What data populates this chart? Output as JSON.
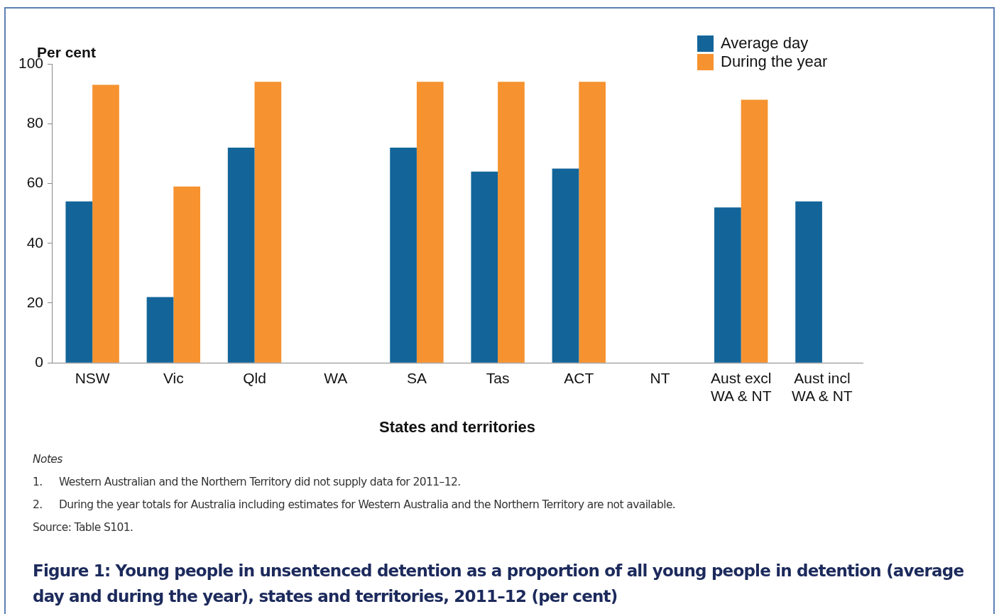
{
  "chart_data": {
    "type": "bar",
    "title": "Figure 1: Young people in unsentenced detention as a proportion of all young people in detention (average day and during the year), states and territories, 2011–12 (per cent)",
    "xlabel": "States and territories",
    "ylabel": "Per cent",
    "categories": [
      "NSW",
      "Vic",
      "Qld",
      "WA",
      "SA",
      "Tas",
      "ACT",
      "NT",
      "Aust excl\nWA & NT",
      "Aust incl\nWA & NT"
    ],
    "series": [
      {
        "name": "Average day",
        "color": "#136599",
        "values": [
          54,
          22,
          72,
          null,
          72,
          64,
          65,
          null,
          52,
          54
        ]
      },
      {
        "name": "During the year",
        "color": "#f6922f",
        "values": [
          93,
          59,
          94,
          null,
          94,
          94,
          94,
          null,
          88,
          null
        ]
      }
    ],
    "ylim": [
      0,
      100
    ],
    "yticks": [
      0,
      20,
      40,
      60,
      80,
      100
    ],
    "grid": false,
    "legend": "top right",
    "annotations": [
      "Notes",
      "1.\tWestern Australian and the Northern Territory did not supply data for 2011–12.",
      "2.\tDuring the year totals for Australia including estimates for Western Australia and the Northern Territory are not available.",
      "Source: Table S101."
    ]
  }
}
